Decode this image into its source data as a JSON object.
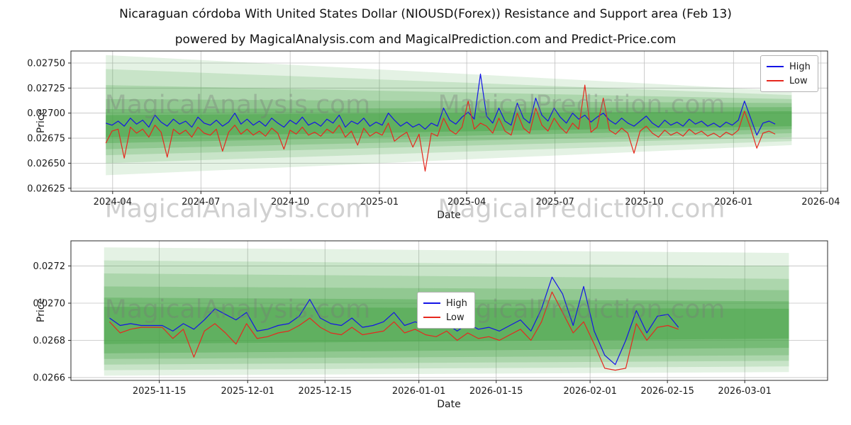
{
  "title": "Nicaraguan córdoba With United States Dollar (NIOUSD(Forex)) Resistance and Support area (Feb 13)",
  "subtitle": "powered by MagicalAnalysis.com and MagicalPrediction.com and Predict-Price.com",
  "watermarks": {
    "left": "MagicalAnalysis.com",
    "right": "MagicalPrediction.com"
  },
  "legend": {
    "high": "High",
    "low": "Low"
  },
  "colors": {
    "high": "#1414e6",
    "low": "#e6281e",
    "band": "#4aa64a",
    "grid": "#c0c0c0",
    "spine": "#2a2a2a"
  },
  "chart_data": [
    {
      "type": "line",
      "xlabel": "Date",
      "ylabel": "Price",
      "legend_position": "upper right",
      "grid": true,
      "x_start": "2024-03-25",
      "x_end": "2026-02-13",
      "xlim": [
        "2024-02-18",
        "2026-04-08"
      ],
      "ylim": [
        0.02622,
        0.02762
      ],
      "x_ticks": [
        {
          "date": "2024-04-01",
          "label": "2024-04"
        },
        {
          "date": "2024-07-01",
          "label": "2024-07"
        },
        {
          "date": "2024-10-01",
          "label": "2024-10"
        },
        {
          "date": "2025-01-01",
          "label": "2025-01"
        },
        {
          "date": "2025-04-01",
          "label": "2025-04"
        },
        {
          "date": "2025-07-01",
          "label": "2025-07"
        },
        {
          "date": "2025-10-01",
          "label": "2025-10"
        },
        {
          "date": "2026-01-01",
          "label": "2026-01"
        },
        {
          "date": "2026-04-01",
          "label": "2026-04"
        }
      ],
      "y_ticks": [
        {
          "value": 0.02625,
          "label": "0.02625"
        },
        {
          "value": 0.0265,
          "label": "0.02650"
        },
        {
          "value": 0.02675,
          "label": "0.02675"
        },
        {
          "value": 0.027,
          "label": "0.02700"
        },
        {
          "value": 0.02725,
          "label": "0.02725"
        },
        {
          "value": 0.0275,
          "label": "0.02750"
        }
      ],
      "bands": {
        "x0": "2024-03-25",
        "x1": "2026-03-02",
        "layers": [
          {
            "top0": 0.02758,
            "top1": 0.02722,
            "bot0": 0.02638,
            "bot1": 0.02668,
            "alpha": 0.15
          },
          {
            "top0": 0.02744,
            "top1": 0.02718,
            "bot0": 0.0265,
            "bot1": 0.02672,
            "alpha": 0.18
          },
          {
            "top0": 0.02728,
            "top1": 0.02714,
            "bot0": 0.02658,
            "bot1": 0.02676,
            "alpha": 0.22
          },
          {
            "top0": 0.02714,
            "top1": 0.0271,
            "bot0": 0.02664,
            "bot1": 0.0268,
            "alpha": 0.28
          },
          {
            "top0": 0.02704,
            "top1": 0.02706,
            "bot0": 0.0267,
            "bot1": 0.02684,
            "alpha": 0.38
          },
          {
            "top0": 0.02698,
            "top1": 0.02702,
            "bot0": 0.02676,
            "bot1": 0.02687,
            "alpha": 0.5
          }
        ]
      },
      "series": [
        {
          "name": "High",
          "color": "high",
          "values": [
            0.0269,
            0.02688,
            0.02692,
            0.02687,
            0.02695,
            0.02689,
            0.02693,
            0.02686,
            0.02698,
            0.02691,
            0.02687,
            0.02694,
            0.02689,
            0.02692,
            0.02686,
            0.02696,
            0.0269,
            0.02688,
            0.02693,
            0.02687,
            0.02691,
            0.027,
            0.02689,
            0.02694,
            0.02688,
            0.02692,
            0.02687,
            0.02695,
            0.0269,
            0.02686,
            0.02693,
            0.02689,
            0.02696,
            0.02688,
            0.02691,
            0.02687,
            0.02694,
            0.0269,
            0.02698,
            0.02686,
            0.02692,
            0.02689,
            0.02695,
            0.02687,
            0.02691,
            0.02688,
            0.027,
            0.02693,
            0.02687,
            0.02691,
            0.02686,
            0.02689,
            0.02684,
            0.0269,
            0.02687,
            0.02705,
            0.02693,
            0.02689,
            0.02696,
            0.02701,
            0.02694,
            0.02739,
            0.02697,
            0.0269,
            0.02705,
            0.02692,
            0.02688,
            0.0271,
            0.02695,
            0.0269,
            0.02715,
            0.02698,
            0.02692,
            0.02705,
            0.02696,
            0.0269,
            0.027,
            0.02694,
            0.02698,
            0.02691,
            0.02696,
            0.027,
            0.02693,
            0.02689,
            0.02695,
            0.0269,
            0.02687,
            0.02692,
            0.02697,
            0.0269,
            0.02686,
            0.02693,
            0.02688,
            0.02691,
            0.02687,
            0.02694,
            0.02689,
            0.02692,
            0.02687,
            0.0269,
            0.02686,
            0.02691,
            0.02688,
            0.02693,
            0.02712,
            0.02695,
            0.02678,
            0.0269,
            0.02692,
            0.02689
          ]
        },
        {
          "name": "Low",
          "color": "low",
          "values": [
            0.0267,
            0.02682,
            0.02684,
            0.02655,
            0.02686,
            0.0268,
            0.02684,
            0.02676,
            0.02688,
            0.02681,
            0.02656,
            0.02684,
            0.02679,
            0.02683,
            0.02676,
            0.02686,
            0.0268,
            0.02678,
            0.02684,
            0.02662,
            0.02681,
            0.02688,
            0.02679,
            0.02684,
            0.02678,
            0.02682,
            0.02677,
            0.02685,
            0.0268,
            0.02664,
            0.02683,
            0.02679,
            0.02686,
            0.02678,
            0.02681,
            0.02677,
            0.02684,
            0.0268,
            0.02688,
            0.02676,
            0.02682,
            0.02668,
            0.02685,
            0.02677,
            0.02681,
            0.02678,
            0.0269,
            0.02672,
            0.02677,
            0.02681,
            0.02666,
            0.02679,
            0.02642,
            0.0268,
            0.02677,
            0.02695,
            0.02683,
            0.02679,
            0.02686,
            0.02712,
            0.02684,
            0.0269,
            0.02687,
            0.0268,
            0.02695,
            0.02682,
            0.02678,
            0.027,
            0.02685,
            0.0268,
            0.02705,
            0.02688,
            0.02682,
            0.02695,
            0.02686,
            0.0268,
            0.0269,
            0.02684,
            0.02728,
            0.02681,
            0.02686,
            0.02715,
            0.02683,
            0.02679,
            0.02685,
            0.0268,
            0.0266,
            0.02682,
            0.02687,
            0.0268,
            0.02676,
            0.02683,
            0.02678,
            0.02681,
            0.02677,
            0.02684,
            0.02679,
            0.02682,
            0.02677,
            0.0268,
            0.02676,
            0.02681,
            0.02678,
            0.02683,
            0.02702,
            0.02685,
            0.02665,
            0.0268,
            0.02682,
            0.02679
          ]
        }
      ]
    },
    {
      "type": "line",
      "xlabel": "Date",
      "ylabel": "Price",
      "legend_position": "upper center",
      "grid": true,
      "x_start": "2025-11-06",
      "x_end": "2026-02-17",
      "xlim": [
        "2025-10-30",
        "2026-03-16"
      ],
      "ylim": [
        0.026585,
        0.027335
      ],
      "x_ticks": [
        {
          "date": "2025-11-15",
          "label": "2025-11-15"
        },
        {
          "date": "2025-12-01",
          "label": "2025-12-01"
        },
        {
          "date": "2025-12-15",
          "label": "2025-12-15"
        },
        {
          "date": "2026-01-01",
          "label": "2026-01-01"
        },
        {
          "date": "2026-01-15",
          "label": "2026-01-15"
        },
        {
          "date": "2026-02-01",
          "label": "2026-02-01"
        },
        {
          "date": "2026-02-15",
          "label": "2026-02-15"
        },
        {
          "date": "2026-03-01",
          "label": "2026-03-01"
        }
      ],
      "y_ticks": [
        {
          "value": 0.0266,
          "label": "0.0266"
        },
        {
          "value": 0.0268,
          "label": "0.0268"
        },
        {
          "value": 0.027,
          "label": "0.0270"
        },
        {
          "value": 0.0272,
          "label": "0.0272"
        }
      ],
      "bands": {
        "x0": "2025-11-05",
        "x1": "2026-03-09",
        "layers": [
          {
            "top0": 0.0273,
            "top1": 0.02727,
            "bot0": 0.02661,
            "bot1": 0.02663,
            "alpha": 0.15
          },
          {
            "top0": 0.02723,
            "top1": 0.0272,
            "bot0": 0.02664,
            "bot1": 0.02666,
            "alpha": 0.18
          },
          {
            "top0": 0.02716,
            "top1": 0.02713,
            "bot0": 0.02667,
            "bot1": 0.02669,
            "alpha": 0.22
          },
          {
            "top0": 0.02709,
            "top1": 0.02707,
            "bot0": 0.0267,
            "bot1": 0.02672,
            "alpha": 0.28
          },
          {
            "top0": 0.02703,
            "top1": 0.02701,
            "bot0": 0.02673,
            "bot1": 0.02676,
            "alpha": 0.38
          },
          {
            "top0": 0.02698,
            "top1": 0.02697,
            "bot0": 0.02678,
            "bot1": 0.02681,
            "alpha": 0.5
          }
        ]
      },
      "series": [
        {
          "name": "High",
          "color": "high",
          "values": [
            0.02692,
            0.02688,
            0.02689,
            0.02688,
            0.02688,
            0.02688,
            0.02685,
            0.02689,
            0.02686,
            0.02691,
            0.02697,
            0.02694,
            0.02691,
            0.02695,
            0.02685,
            0.02686,
            0.02688,
            0.02689,
            0.02693,
            0.02702,
            0.02692,
            0.02689,
            0.02688,
            0.02692,
            0.02687,
            0.02688,
            0.0269,
            0.02695,
            0.02688,
            0.0269,
            0.02688,
            0.02687,
            0.02689,
            0.02685,
            0.02689,
            0.02686,
            0.02687,
            0.02685,
            0.02688,
            0.02691,
            0.02685,
            0.02697,
            0.02714,
            0.02705,
            0.02688,
            0.02709,
            0.02685,
            0.02672,
            0.02667,
            0.0268,
            0.02696,
            0.02684,
            0.02693,
            0.02694,
            0.02687
          ]
        },
        {
          "name": "Low",
          "color": "low",
          "values": [
            0.0269,
            0.02684,
            0.02686,
            0.02687,
            0.02687,
            0.02687,
            0.02681,
            0.02686,
            0.02671,
            0.02685,
            0.02689,
            0.02684,
            0.02678,
            0.02689,
            0.02681,
            0.02682,
            0.02684,
            0.02685,
            0.02688,
            0.02692,
            0.02687,
            0.02684,
            0.02683,
            0.02687,
            0.02683,
            0.02684,
            0.02685,
            0.0269,
            0.02684,
            0.02686,
            0.02683,
            0.02682,
            0.02685,
            0.0268,
            0.02684,
            0.02681,
            0.02682,
            0.0268,
            0.02683,
            0.02686,
            0.0268,
            0.0269,
            0.02706,
            0.02695,
            0.02684,
            0.0269,
            0.02678,
            0.02665,
            0.02664,
            0.02665,
            0.02689,
            0.0268,
            0.02687,
            0.02688,
            0.02686
          ]
        }
      ]
    }
  ]
}
